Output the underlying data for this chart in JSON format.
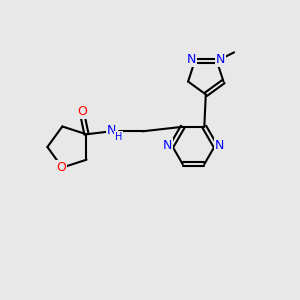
{
  "bg_color": "#e8e8e8",
  "bond_color": "#000000",
  "bond_width": 1.5,
  "atom_colors": {
    "N": "#0000ff",
    "O": "#ff0000",
    "C": "#000000"
  },
  "font_size": 9.0,
  "figsize": [
    3.0,
    3.0
  ],
  "dpi": 100
}
